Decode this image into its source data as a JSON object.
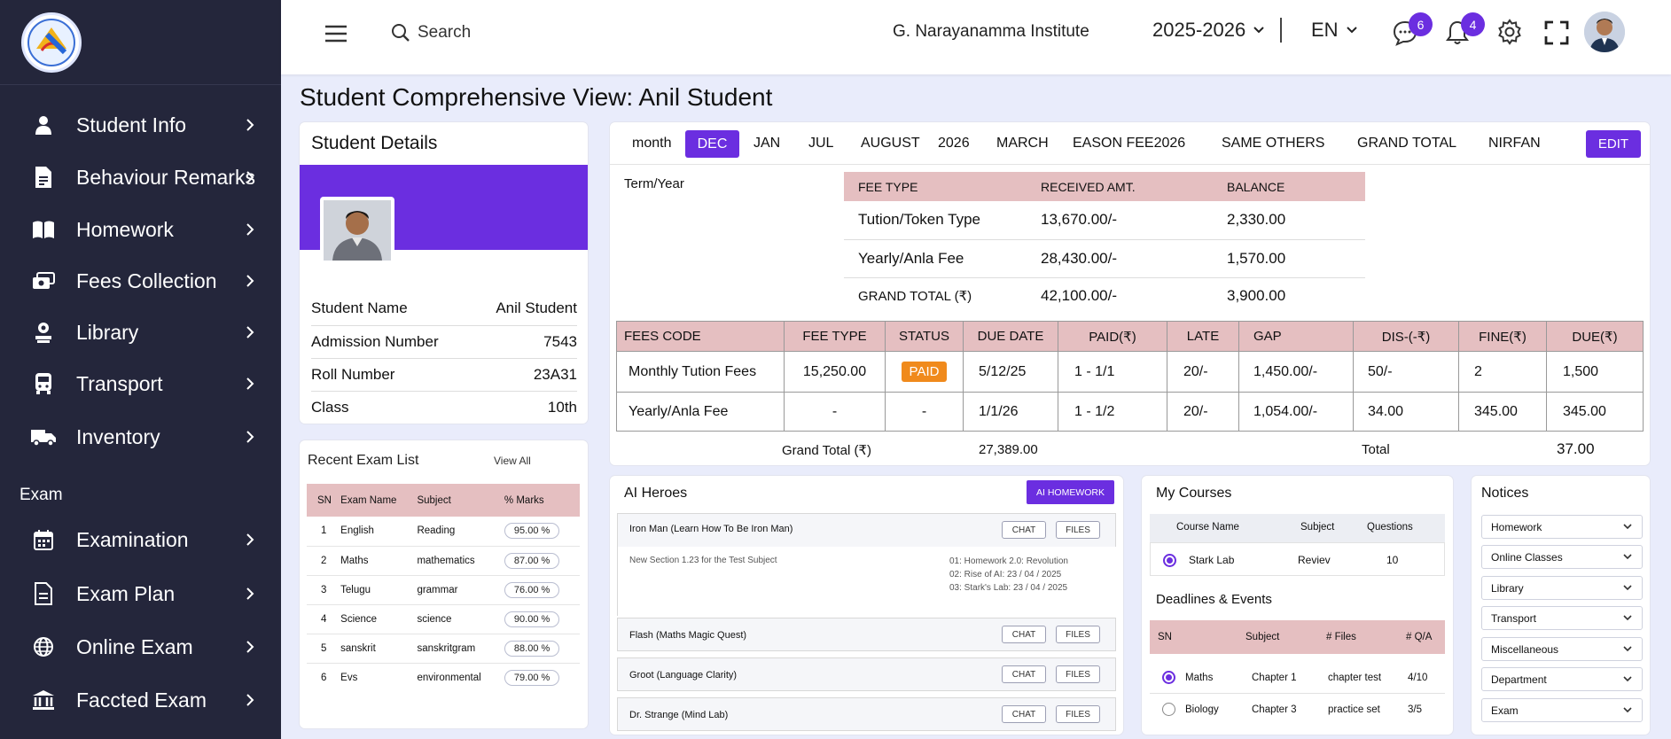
{
  "sidebar": {
    "items": [
      {
        "label": "Student Info",
        "icon": "user-icon"
      },
      {
        "label": "Behaviour Remarks",
        "icon": "document-icon"
      },
      {
        "label": "Homework",
        "icon": "book-icon"
      },
      {
        "label": "Fees Collection",
        "icon": "money-icon"
      },
      {
        "label": "Library",
        "icon": "library-icon"
      },
      {
        "label": "Transport",
        "icon": "bus-icon"
      },
      {
        "label": "Inventory",
        "icon": "truck-icon"
      }
    ],
    "section_label": "Exam",
    "exam_items": [
      {
        "label": "Examination",
        "icon": "calendar-icon"
      },
      {
        "label": "Exam Plan",
        "icon": "file-icon"
      },
      {
        "label": "Online Exam",
        "icon": "globe-icon"
      },
      {
        "label": "Faccted Exam",
        "icon": "institution-icon"
      }
    ]
  },
  "topbar": {
    "search_placeholder": "Search",
    "institute": "G. Narayanamma Institute",
    "year": "2025-2026",
    "language": "EN",
    "messages_count": "6",
    "notifications_count": "4"
  },
  "page_title": "Student Comprehensive View: Anil Student",
  "student_details": {
    "title": "Student Details",
    "rows": [
      {
        "label": "Student Name",
        "value": "Anil Student"
      },
      {
        "label": "Admission Number",
        "value": "7543"
      },
      {
        "label": "Roll Number",
        "value": "23A31"
      },
      {
        "label": "Class",
        "value": "10th"
      }
    ]
  },
  "recent_exams": {
    "title": "Recent Exam List",
    "view_all": "View All",
    "headers": [
      "SN",
      "Exam Name",
      "Subject",
      "% Marks"
    ],
    "rows": [
      [
        "1",
        "English",
        "Reading",
        "95.00 %"
      ],
      [
        "2",
        "Maths",
        "mathematics",
        "87.00 %"
      ],
      [
        "3",
        "Telugu",
        "grammar",
        "76.00 %"
      ],
      [
        "4",
        "Science",
        "science",
        "90.00 %"
      ],
      [
        "5",
        "sanskrit",
        "sanskritgram",
        "88.00 %"
      ],
      [
        "6",
        "Evs",
        "environmental",
        "79.00 %"
      ]
    ]
  },
  "fees": {
    "tabs": [
      "month",
      "DEC",
      "JAN",
      "JUL",
      "AUGUST",
      "2026",
      "MARCH",
      "EASON FEE2026",
      "SAME OTHERS",
      "GRAND TOTAL",
      "NIRFAN"
    ],
    "active_tab": "DEC",
    "edit_label": "EDIT",
    "term_label": "Term/Year",
    "summary_headers": [
      "FEE TYPE",
      "RECEIVED AMT.",
      "BALANCE"
    ],
    "summary_rows": [
      [
        "Tution/Token Type",
        "13,670.00/-",
        "2,330.00"
      ],
      [
        "Yearly/Anla Fee",
        "28,430.00/-",
        "1,570.00"
      ],
      [
        "GRAND TOTAL (₹)",
        "42,100.00/-",
        "3,900.00"
      ]
    ],
    "detail_headers": [
      "FEES CODE",
      "FEE TYPE",
      "STATUS",
      "DUE DATE",
      "PAID(₹)",
      "LATE",
      "GAP",
      "DIS-(-₹)",
      "FINE(₹)",
      "DUE(₹)"
    ],
    "detail_rows": [
      [
        "Monthly Tution Fees",
        "15,250.00",
        "PAID",
        "5/12/25",
        "1 - 1/1",
        "20/-",
        "1,450.00/-",
        "50/-",
        "2",
        "1,500"
      ],
      [
        "Yearly/Anla Fee",
        "-",
        "-",
        "1/1/26",
        "1 - 1/2",
        "20/-",
        "1,054.00/-",
        "34.00",
        "345.00",
        "345.00"
      ]
    ],
    "grand_total_label": "Grand Total (₹)",
    "grand_total_value": "27,389.00",
    "total_label": "Total",
    "total_value": "37.00"
  },
  "ai_heroes": {
    "title": "AI Heroes",
    "button": "AI HOMEWORK",
    "chat": "CHAT",
    "files": "FILES",
    "items": [
      {
        "name": "Iron Man (Learn How To Be Iron Man)"
      },
      {
        "name": "Flash (Maths Magic Quest)"
      },
      {
        "name": "Groot (Language Clarity)"
      },
      {
        "name": "Dr. Strange (Mind Lab)"
      }
    ],
    "section_note": "New Section 1.23 for the Test Subject",
    "homework_lines": [
      "01: Homework 2.0: Revolution",
      "02: Rise of AI: 23 / 04 / 2025",
      "03: Stark's Lab: 23 / 04 / 2025"
    ]
  },
  "courses": {
    "title": "My Courses",
    "headers": [
      "Course Name",
      "Subject",
      "Questions"
    ],
    "rows": [
      [
        "Stark Lab",
        "Reviev",
        "10"
      ]
    ],
    "deadlines_title": "Deadlines & Events",
    "deadline_headers": [
      "SN",
      "Subject",
      "# Files",
      "# Q/A"
    ],
    "deadline_rows": [
      [
        "Maths",
        "Chapter 1",
        "chapter test",
        "4/10"
      ],
      [
        "Biology",
        "Chapter 3",
        "practice set",
        "3/5"
      ]
    ]
  },
  "notices": {
    "title": "Notices",
    "items": [
      "Homework",
      "Online Classes",
      "Library",
      "Transport",
      "Miscellaneous",
      "Department",
      "Exam"
    ]
  },
  "colors": {
    "sidebar_bg": "#24263b",
    "accent": "#6b2ee0",
    "table_header": "#e5bfc1",
    "paid_badge": "#f08a1c",
    "page_bg": "#e9ecfb"
  }
}
